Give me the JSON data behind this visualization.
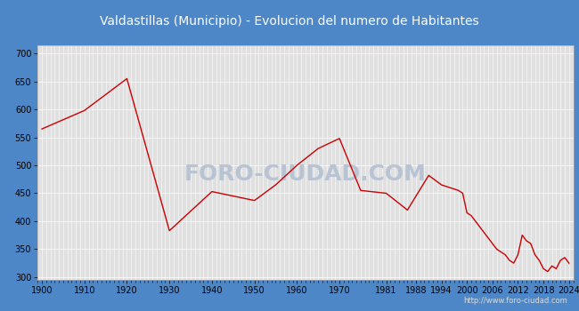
{
  "title": "Valdastillas (Municipio) - Evolucion del numero de Habitantes",
  "title_color": "white",
  "title_bg_color": "#4d87c7",
  "plot_bg_color": "#e0e0e0",
  "outer_bg_color": "#4d87c7",
  "line_color": "#cc0000",
  "watermark_text": "FORO-CIUDAD.COM",
  "watermark_color": "#b8c4d4",
  "url_text": "http://www.foro-ciudad.com",
  "years": [
    1900,
    1910,
    1920,
    1930,
    1940,
    1945,
    1950,
    1955,
    1960,
    1965,
    1970,
    1975,
    1981,
    1986,
    1991,
    1994,
    1996,
    1998,
    1999,
    2000,
    2001,
    2002,
    2003,
    2004,
    2005,
    2006,
    2007,
    2008,
    2009,
    2010,
    2011,
    2012,
    2013,
    2014,
    2015,
    2016,
    2017,
    2018,
    2019,
    2020,
    2021,
    2022,
    2023,
    2024
  ],
  "population": [
    565,
    598,
    655,
    383,
    453,
    445,
    437,
    465,
    500,
    530,
    548,
    455,
    450,
    420,
    482,
    465,
    460,
    455,
    450,
    415,
    410,
    400,
    390,
    380,
    370,
    360,
    350,
    345,
    340,
    330,
    325,
    340,
    375,
    365,
    360,
    340,
    330,
    315,
    310,
    320,
    315,
    330,
    335,
    325
  ],
  "xtick_labels": [
    "1900",
    "1910",
    "1920",
    "1930",
    "1940",
    "1950",
    "1960",
    "1970",
    "1981",
    "1988",
    "1994",
    "2000",
    "2006",
    "2012",
    "2018",
    "2024"
  ],
  "xtick_positions": [
    1900,
    1910,
    1920,
    1930,
    1940,
    1950,
    1960,
    1970,
    1981,
    1988,
    1994,
    2000,
    2006,
    2012,
    2018,
    2024
  ],
  "ytick_positions": [
    300,
    350,
    400,
    450,
    500,
    550,
    600,
    650,
    700
  ],
  "ylim": [
    295,
    715
  ],
  "xlim": [
    1899,
    2025
  ],
  "title_fontsize": 10,
  "tick_fontsize": 7,
  "url_fontsize": 6,
  "watermark_fontsize": 18,
  "grid_color": "white",
  "grid_linewidth": 0.5,
  "line_linewidth": 1.0
}
